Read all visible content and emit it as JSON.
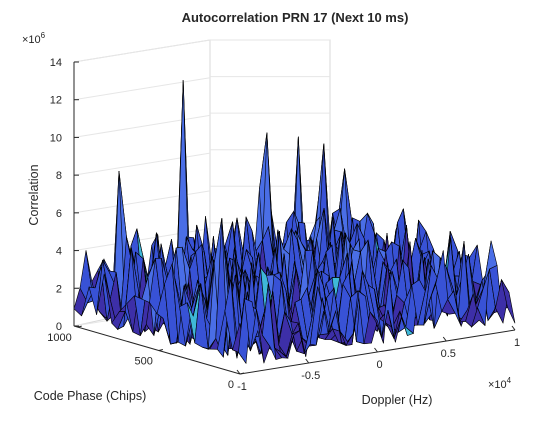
{
  "chart_data": {
    "type": "surface",
    "title": "Autocorrelation PRN 17 (Next 10 ms)",
    "xlabel": "Doppler (Hz)",
    "ylabel": "Code Phase (Chips)",
    "zlabel": "Correlation",
    "x_exponent": "×10",
    "x_exponent_power": "4",
    "z_exponent": "×10",
    "z_exponent_power": "6",
    "x_ticks": [
      "-1",
      "-0.5",
      "0",
      "0.5",
      "1"
    ],
    "y_ticks": [
      "0",
      "500",
      "1000"
    ],
    "z_ticks": [
      "0",
      "2",
      "4",
      "6",
      "8",
      "10",
      "12",
      "14"
    ],
    "xlim": [
      -10000,
      10000
    ],
    "ylim": [
      0,
      1023
    ],
    "zlim": [
      0,
      14000000
    ],
    "grid": true,
    "colormap": [
      "#3d2fa8",
      "#3852d6",
      "#4a6ee6",
      "#3fb8d8"
    ],
    "edge_color": "#000000",
    "peaks": [
      {
        "doppler": -2500,
        "code_phase": 960,
        "value": 12300000
      },
      {
        "doppler": -8000,
        "code_phase": 950,
        "value": 8200000
      },
      {
        "doppler": 3500,
        "code_phase": 980,
        "value": 8800000
      },
      {
        "doppler": 5000,
        "code_phase": 950,
        "value": 8500000
      },
      {
        "doppler": -9000,
        "code_phase": 200,
        "value": 7700000
      },
      {
        "doppler": 6500,
        "code_phase": 900,
        "value": 8100000
      }
    ]
  }
}
